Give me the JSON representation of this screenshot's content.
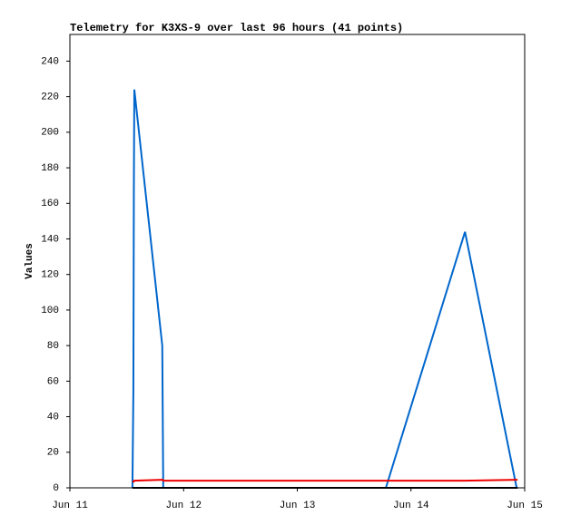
{
  "chart_data": {
    "type": "line",
    "title": "Telemetry for K3XS-9 over last 96 hours (41 points)",
    "y_label": "Values",
    "x": [
      13.2,
      13.4,
      13.5,
      13.6,
      19.5,
      19.6,
      19.7,
      30,
      50,
      66.7,
      83.4,
      94.3,
      94.5
    ],
    "series": [
      {
        "color": "#0066cc",
        "values": [
          0,
          55,
          168,
          224,
          80,
          40,
          0,
          0,
          0,
          0,
          144,
          0,
          0
        ]
      },
      {
        "color": "#ee0000",
        "values": [
          3.5,
          3.5,
          3.5,
          4,
          4.5,
          4.5,
          4,
          4,
          4,
          4,
          4,
          4.5,
          4.5
        ]
      },
      {
        "color": "#000000",
        "values": [
          0,
          0,
          0,
          0,
          0,
          0,
          0,
          0,
          0,
          0,
          0,
          0,
          0
        ]
      }
    ],
    "xlim": [
      0,
      96
    ],
    "xticks": [
      {
        "value": 0,
        "label": "Jun 11"
      },
      {
        "value": 24,
        "label": "Jun 12"
      },
      {
        "value": 48,
        "label": "Jun 13"
      },
      {
        "value": 72,
        "label": "Jun 14"
      },
      {
        "value": 96,
        "label": "Jun 15"
      }
    ],
    "ylim": [
      0,
      255
    ],
    "yticks": [
      0,
      20,
      40,
      60,
      80,
      100,
      120,
      140,
      160,
      180,
      200,
      220,
      240
    ]
  }
}
